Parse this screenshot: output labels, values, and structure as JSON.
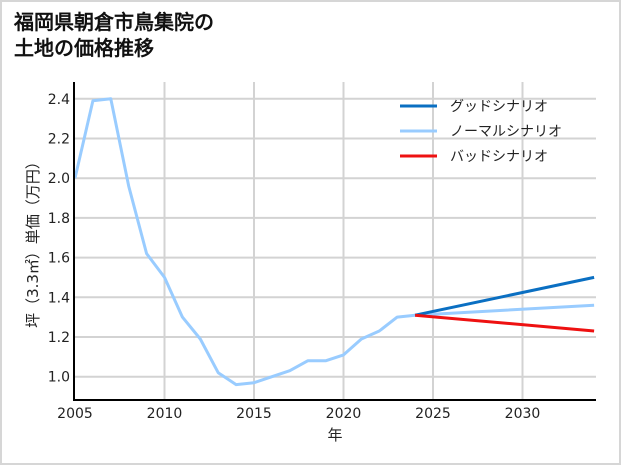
{
  "title": "福岡県朝倉市鳥集院の\n土地の価格推移",
  "chart_data": {
    "type": "line",
    "title": "福岡県朝倉市鳥集院の土地の価格推移",
    "xlabel": "年",
    "ylabel": "坪（3.3㎡）単価（万円）",
    "xlim": [
      2005,
      2034
    ],
    "ylim": [
      0.89,
      2.48
    ],
    "x_ticks": [
      2005,
      2010,
      2015,
      2020,
      2025,
      2030
    ],
    "y_ticks": [
      1.0,
      1.2,
      1.4,
      1.6,
      1.8,
      2.0,
      2.2,
      2.4
    ],
    "y_tick_labels": [
      "1.0",
      "1.2",
      "1.4",
      "1.6",
      "1.8",
      "2.0",
      "2.2",
      "2.4"
    ],
    "grid": true,
    "legend_position": "upper right",
    "series": [
      {
        "name": "グッドシナリオ",
        "color": "#0a6fc2",
        "x": [
          2024,
          2034
        ],
        "values": [
          1.31,
          1.5
        ]
      },
      {
        "name": "ノーマルシナリオ",
        "color": "#99ccff",
        "x": [
          2005,
          2006,
          2007,
          2008,
          2009,
          2010,
          2011,
          2012,
          2013,
          2014,
          2015,
          2016,
          2017,
          2018,
          2019,
          2020,
          2021,
          2022,
          2023,
          2024,
          2034
        ],
        "values": [
          2.0,
          2.39,
          2.4,
          1.96,
          1.62,
          1.5,
          1.3,
          1.19,
          1.02,
          0.96,
          0.97,
          1.0,
          1.03,
          1.08,
          1.08,
          1.11,
          1.19,
          1.23,
          1.3,
          1.31,
          1.36
        ]
      },
      {
        "name": "バッドシナリオ",
        "color": "#ee1111",
        "x": [
          2024,
          2034
        ],
        "values": [
          1.31,
          1.23
        ]
      }
    ]
  }
}
